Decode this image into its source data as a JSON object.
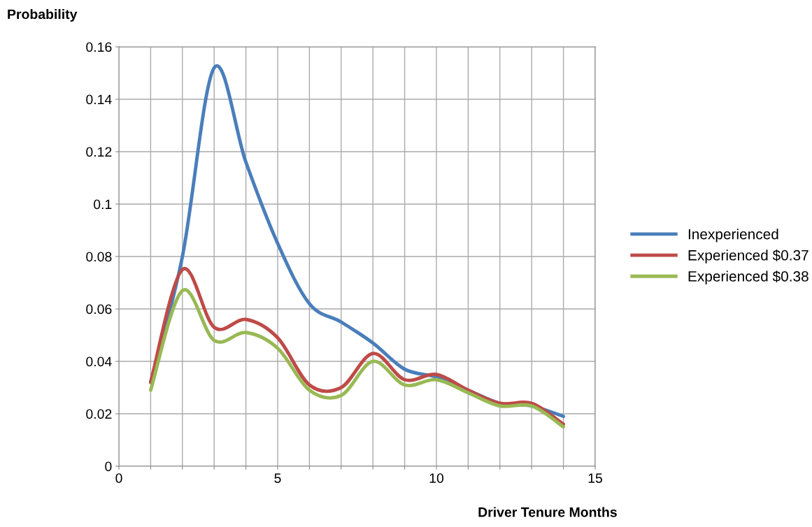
{
  "chart_data": {
    "type": "line",
    "ylabel": "Probability",
    "xlabel": "Driver Tenure Months",
    "x": [
      1,
      2,
      3,
      4,
      5,
      6,
      7,
      8,
      9,
      10,
      11,
      12,
      13,
      14
    ],
    "series": [
      {
        "name": "Inexperienced",
        "color": "#4a7ebb",
        "values": [
          0.032,
          0.08,
          0.152,
          0.116,
          0.085,
          0.062,
          0.055,
          0.047,
          0.037,
          0.034,
          0.029,
          0.024,
          0.023,
          0.019
        ]
      },
      {
        "name": "Experienced $0.37",
        "color": "#be4b48",
        "values": [
          0.032,
          0.075,
          0.053,
          0.056,
          0.049,
          0.031,
          0.03,
          0.043,
          0.033,
          0.035,
          0.029,
          0.024,
          0.024,
          0.016
        ]
      },
      {
        "name": "Experienced $0.38",
        "color": "#98b954",
        "values": [
          0.029,
          0.067,
          0.048,
          0.051,
          0.045,
          0.029,
          0.027,
          0.04,
          0.031,
          0.033,
          0.028,
          0.023,
          0.023,
          0.015
        ]
      }
    ],
    "xlim": [
      0,
      15
    ],
    "xticks": [
      0,
      {
        "value": 1,
        "label": null
      },
      {
        "value": 2,
        "label": null
      },
      {
        "value": 3,
        "label": null
      },
      {
        "value": 4,
        "label": null
      },
      5,
      {
        "value": 6,
        "label": null
      },
      {
        "value": 7,
        "label": null
      },
      {
        "value": 8,
        "label": null
      },
      {
        "value": 9,
        "label": null
      },
      10,
      {
        "value": 11,
        "label": null
      },
      {
        "value": 12,
        "label": null
      },
      {
        "value": 13,
        "label": null
      },
      {
        "value": 14,
        "label": null
      },
      15
    ],
    "ylim": [
      0,
      0.16
    ],
    "yticks": [
      0,
      0.02,
      0.04,
      0.06,
      0.08,
      0.1,
      0.12,
      0.14,
      0.16
    ],
    "grid": true,
    "legend": "right",
    "marker": "none",
    "line_style": "solid"
  }
}
